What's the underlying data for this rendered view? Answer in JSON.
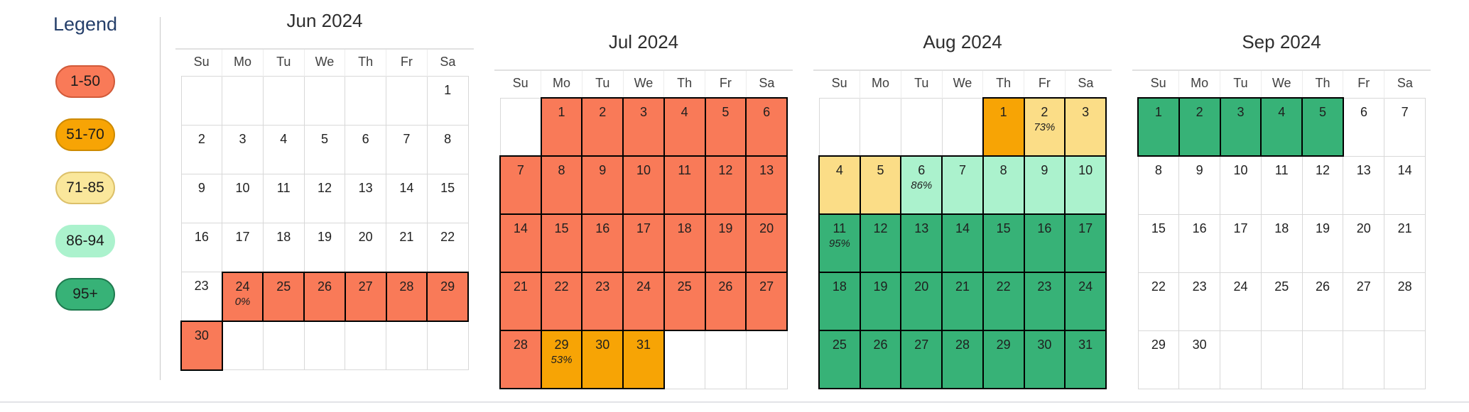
{
  "legend": {
    "title": "Legend",
    "items": [
      {
        "label": "1-50",
        "bg": "#f97a58",
        "border": "#d15a39"
      },
      {
        "label": "51-70",
        "bg": "#f7a405",
        "border": "#cd8a00"
      },
      {
        "label": "71-85",
        "bg": "#fae79b",
        "border": "#dcc069"
      },
      {
        "label": "86-94",
        "bg": "#abf2cd",
        "border": "#abf2cd"
      },
      {
        "label": "95+",
        "bg": "#37b277",
        "border": "#1f7a4f"
      }
    ]
  },
  "colors": {
    "salmon": "#f97a58",
    "orange": "#f7a405",
    "yellow": "#fbdd87",
    "mint": "#abf2cd",
    "green": "#37b277"
  },
  "weekdays": [
    "Su",
    "Mo",
    "Tu",
    "We",
    "Th",
    "Fr",
    "Sa"
  ],
  "months": [
    {
      "title": "Jun 2024",
      "weeks": [
        [
          null,
          null,
          null,
          null,
          null,
          null,
          {
            "day": "1"
          }
        ],
        [
          {
            "day": "2"
          },
          {
            "day": "3"
          },
          {
            "day": "4"
          },
          {
            "day": "5"
          },
          {
            "day": "6"
          },
          {
            "day": "7"
          },
          {
            "day": "8"
          }
        ],
        [
          {
            "day": "9"
          },
          {
            "day": "10"
          },
          {
            "day": "11"
          },
          {
            "day": "12"
          },
          {
            "day": "13"
          },
          {
            "day": "14"
          },
          {
            "day": "15"
          }
        ],
        [
          {
            "day": "16"
          },
          {
            "day": "17"
          },
          {
            "day": "18"
          },
          {
            "day": "19"
          },
          {
            "day": "20"
          },
          {
            "day": "21"
          },
          {
            "day": "22"
          }
        ],
        [
          {
            "day": "23"
          },
          {
            "day": "24",
            "pct": "0%",
            "color": "salmon"
          },
          {
            "day": "25",
            "color": "salmon"
          },
          {
            "day": "26",
            "color": "salmon"
          },
          {
            "day": "27",
            "color": "salmon"
          },
          {
            "day": "28",
            "color": "salmon"
          },
          {
            "day": "29",
            "color": "salmon"
          }
        ],
        [
          {
            "day": "30",
            "color": "salmon"
          },
          null,
          null,
          null,
          null,
          null,
          null
        ]
      ]
    },
    {
      "title": "Jul 2024",
      "weeks": [
        [
          null,
          {
            "day": "1",
            "color": "salmon"
          },
          {
            "day": "2",
            "color": "salmon"
          },
          {
            "day": "3",
            "color": "salmon"
          },
          {
            "day": "4",
            "color": "salmon"
          },
          {
            "day": "5",
            "color": "salmon"
          },
          {
            "day": "6",
            "color": "salmon"
          }
        ],
        [
          {
            "day": "7",
            "color": "salmon"
          },
          {
            "day": "8",
            "color": "salmon"
          },
          {
            "day": "9",
            "color": "salmon"
          },
          {
            "day": "10",
            "color": "salmon"
          },
          {
            "day": "11",
            "color": "salmon"
          },
          {
            "day": "12",
            "color": "salmon"
          },
          {
            "day": "13",
            "color": "salmon"
          }
        ],
        [
          {
            "day": "14",
            "color": "salmon"
          },
          {
            "day": "15",
            "color": "salmon"
          },
          {
            "day": "16",
            "color": "salmon"
          },
          {
            "day": "17",
            "color": "salmon"
          },
          {
            "day": "18",
            "color": "salmon"
          },
          {
            "day": "19",
            "color": "salmon"
          },
          {
            "day": "20",
            "color": "salmon"
          }
        ],
        [
          {
            "day": "21",
            "color": "salmon"
          },
          {
            "day": "22",
            "color": "salmon"
          },
          {
            "day": "23",
            "color": "salmon"
          },
          {
            "day": "24",
            "color": "salmon"
          },
          {
            "day": "25",
            "color": "salmon"
          },
          {
            "day": "26",
            "color": "salmon"
          },
          {
            "day": "27",
            "color": "salmon"
          }
        ],
        [
          {
            "day": "28",
            "color": "salmon"
          },
          {
            "day": "29",
            "pct": "53%",
            "color": "orange"
          },
          {
            "day": "30",
            "color": "orange"
          },
          {
            "day": "31",
            "color": "orange"
          },
          null,
          null,
          null
        ]
      ]
    },
    {
      "title": "Aug 2024",
      "weeks": [
        [
          null,
          null,
          null,
          null,
          {
            "day": "1",
            "color": "orange"
          },
          {
            "day": "2",
            "pct": "73%",
            "color": "yellow"
          },
          {
            "day": "3",
            "color": "yellow"
          }
        ],
        [
          {
            "day": "4",
            "color": "yellow"
          },
          {
            "day": "5",
            "color": "yellow"
          },
          {
            "day": "6",
            "pct": "86%",
            "color": "mint"
          },
          {
            "day": "7",
            "color": "mint"
          },
          {
            "day": "8",
            "color": "mint"
          },
          {
            "day": "9",
            "color": "mint"
          },
          {
            "day": "10",
            "color": "mint"
          }
        ],
        [
          {
            "day": "11",
            "pct": "95%",
            "color": "green"
          },
          {
            "day": "12",
            "color": "green"
          },
          {
            "day": "13",
            "color": "green"
          },
          {
            "day": "14",
            "color": "green"
          },
          {
            "day": "15",
            "color": "green"
          },
          {
            "day": "16",
            "color": "green"
          },
          {
            "day": "17",
            "color": "green"
          }
        ],
        [
          {
            "day": "18",
            "color": "green"
          },
          {
            "day": "19",
            "color": "green"
          },
          {
            "day": "20",
            "color": "green"
          },
          {
            "day": "21",
            "color": "green"
          },
          {
            "day": "22",
            "color": "green"
          },
          {
            "day": "23",
            "color": "green"
          },
          {
            "day": "24",
            "color": "green"
          }
        ],
        [
          {
            "day": "25",
            "color": "green"
          },
          {
            "day": "26",
            "color": "green"
          },
          {
            "day": "27",
            "color": "green"
          },
          {
            "day": "28",
            "color": "green"
          },
          {
            "day": "29",
            "color": "green"
          },
          {
            "day": "30",
            "color": "green"
          },
          {
            "day": "31",
            "color": "green"
          }
        ]
      ]
    },
    {
      "title": "Sep 2024",
      "weeks": [
        [
          {
            "day": "1",
            "color": "green"
          },
          {
            "day": "2",
            "color": "green"
          },
          {
            "day": "3",
            "color": "green"
          },
          {
            "day": "4",
            "color": "green"
          },
          {
            "day": "5",
            "color": "green"
          },
          {
            "day": "6"
          },
          {
            "day": "7"
          }
        ],
        [
          {
            "day": "8"
          },
          {
            "day": "9"
          },
          {
            "day": "10"
          },
          {
            "day": "11"
          },
          {
            "day": "12"
          },
          {
            "day": "13"
          },
          {
            "day": "14"
          }
        ],
        [
          {
            "day": "15"
          },
          {
            "day": "16"
          },
          {
            "day": "17"
          },
          {
            "day": "18"
          },
          {
            "day": "19"
          },
          {
            "day": "20"
          },
          {
            "day": "21"
          }
        ],
        [
          {
            "day": "22"
          },
          {
            "day": "23"
          },
          {
            "day": "24"
          },
          {
            "day": "25"
          },
          {
            "day": "26"
          },
          {
            "day": "27"
          },
          {
            "day": "28"
          }
        ],
        [
          {
            "day": "29"
          },
          {
            "day": "30"
          },
          null,
          null,
          null,
          null,
          null
        ]
      ]
    }
  ]
}
